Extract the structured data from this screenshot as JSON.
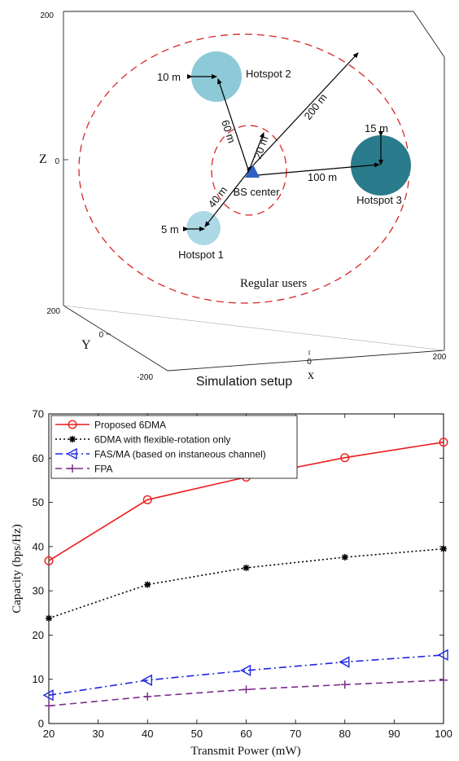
{
  "chart_data": [
    {
      "type": "scatter",
      "title": "Simulation setup",
      "axes": {
        "z": {
          "label": "Z",
          "ticks": [
            "200",
            "0"
          ]
        },
        "y": {
          "label": "Y",
          "ticks": [
            "200",
            "0",
            "-200"
          ]
        },
        "x": {
          "label": "x",
          "ticks": [
            "0",
            "200"
          ]
        }
      },
      "bs": {
        "label": "BS center",
        "color": "#2f5fc4"
      },
      "regions": [
        {
          "name": "Hotspot 1",
          "radius_label": "5 m",
          "distance_label": "40 m",
          "color": "#add8e6"
        },
        {
          "name": "Hotspot 2",
          "radius_label": "10 m",
          "distance_label": "60 m",
          "color": "#8dcad8"
        },
        {
          "name": "Hotspot 3",
          "radius_label": "15 m",
          "distance_label": "100 m",
          "color": "#2a7b8c"
        }
      ],
      "inner_ring_label": "20 m",
      "outer_ring_label": "200 m",
      "outer_region_label": "Regular users",
      "ring_color": "#d62728"
    },
    {
      "type": "line",
      "x": [
        20,
        40,
        60,
        80,
        100
      ],
      "xlabel": "Transmit Power (mW)",
      "ylabel": "Capacity (bps/Hz)",
      "xlim": [
        20,
        100
      ],
      "ylim": [
        0,
        70
      ],
      "xticks": [
        20,
        30,
        40,
        50,
        60,
        70,
        80,
        90,
        100
      ],
      "yticks": [
        0,
        10,
        20,
        30,
        40,
        50,
        60,
        70
      ],
      "grid": false,
      "legend_position": "top-left",
      "series": [
        {
          "name": "Proposed 6DMA",
          "values": [
            36.8,
            50.6,
            55.7,
            60.1,
            63.6
          ],
          "color": "#ee1c1c",
          "marker": "circle",
          "dash": ""
        },
        {
          "name": "6DMA with flexible-rotation only",
          "values": [
            23.8,
            31.4,
            35.2,
            37.6,
            39.5
          ],
          "color": "#000000",
          "marker": "star",
          "dash": "2,3"
        },
        {
          "name": "FAS/MA (based on instaneous channel)",
          "values": [
            6.4,
            9.8,
            12.0,
            13.9,
            15.5
          ],
          "color": "#1d26e0",
          "marker": "triangle-left",
          "dash": "9,4,2,4"
        },
        {
          "name": "FPA",
          "values": [
            4.0,
            6.1,
            7.7,
            8.8,
            9.8
          ],
          "color": "#7a2d8a",
          "marker": "plus",
          "dash": "8,5"
        }
      ]
    }
  ]
}
